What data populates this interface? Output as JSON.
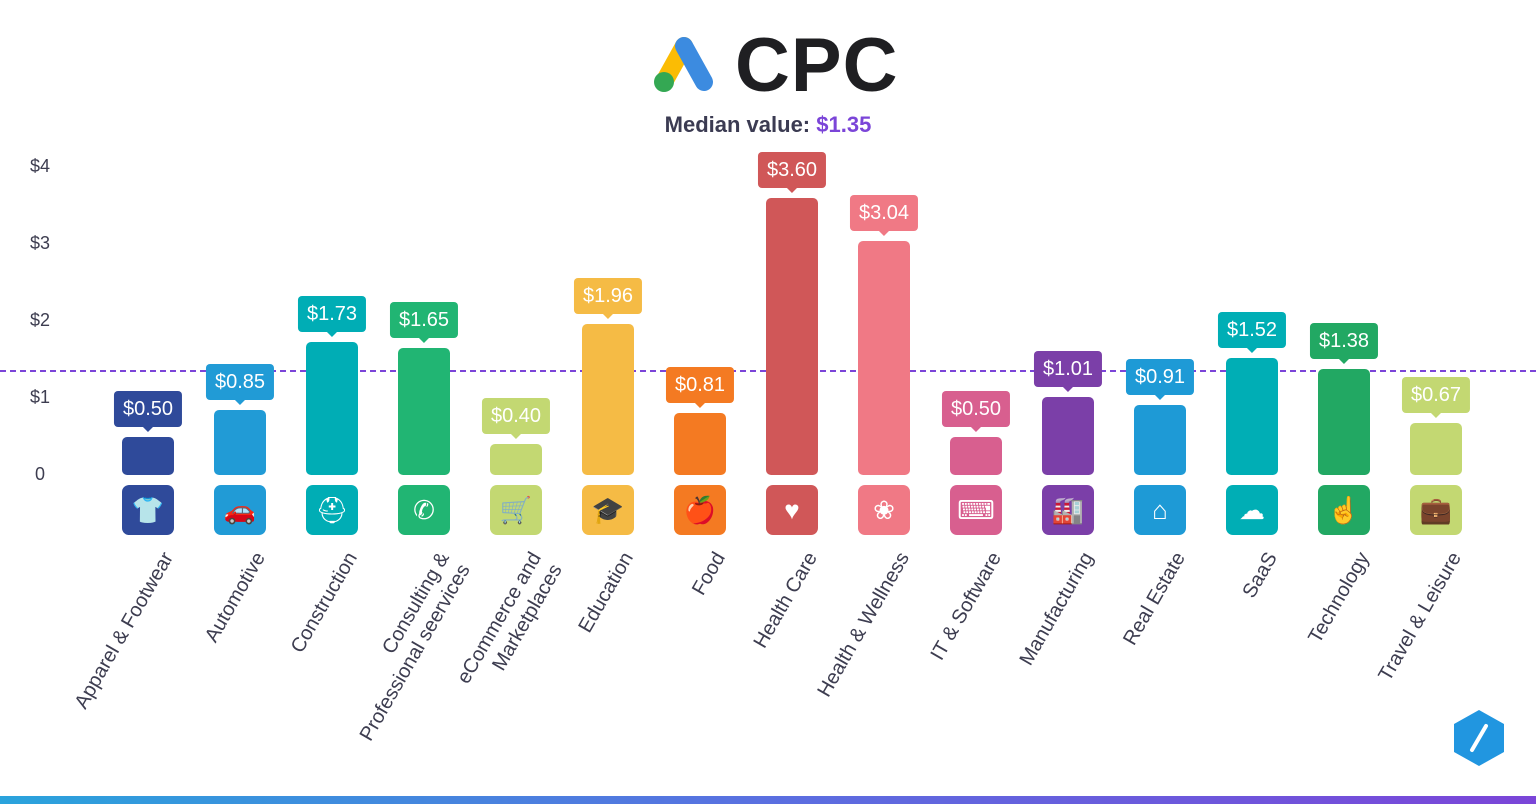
{
  "header": {
    "title": "CPC",
    "subtitle_label": "Median value:",
    "subtitle_value": "$1.35"
  },
  "colors": {
    "median_line": "#7b45d8",
    "logo_blue": "#3c8be0",
    "logo_yellow": "#fbbc04",
    "logo_green": "#34a853"
  },
  "chart_data": {
    "type": "bar",
    "title": "CPC",
    "xlabel": "",
    "ylabel": "",
    "ylim": [
      0,
      4
    ],
    "yticks": [
      {
        "value": 0,
        "label": "0"
      },
      {
        "value": 1,
        "label": "$1"
      },
      {
        "value": 2,
        "label": "$2"
      },
      {
        "value": 3,
        "label": "$3"
      },
      {
        "value": 4,
        "label": "$4"
      }
    ],
    "grid": false,
    "median": 1.35,
    "categories": [
      "Apparel & Footwear",
      "Automotive",
      "Construction",
      "Consulting &\nProfessional seervices",
      "eCommerce and\nMarketplaces",
      "Education",
      "Food",
      "Health Care",
      "Health & Wellness",
      "IT & Software",
      "Manufacturing",
      "Real Estate",
      "SaaS",
      "Technology",
      "Travel & Leisure"
    ],
    "values": [
      0.5,
      0.85,
      1.73,
      1.65,
      0.4,
      1.96,
      0.81,
      3.6,
      3.04,
      0.5,
      1.01,
      0.91,
      1.52,
      1.38,
      0.67
    ],
    "value_labels": [
      "$0.50",
      "$0.85",
      "$1.73",
      "$1.65",
      "$0.40",
      "$1.96",
      "$0.81",
      "$3.60",
      "$3.04",
      "$0.50",
      "$1.01",
      "$0.91",
      "$1.52",
      "$1.38",
      "$0.67"
    ],
    "bar_colors": [
      "#2f4a9a",
      "#219bd6",
      "#00adb5",
      "#21b573",
      "#c3d872",
      "#f5bb45",
      "#f47a22",
      "#d05758",
      "#f07985",
      "#d85f8f",
      "#7b3fa8",
      "#1e9ad6",
      "#00aeb5",
      "#22a863",
      "#c3d872"
    ],
    "icons": [
      "tshirt-icon",
      "car-icon",
      "hard-hat-icon",
      "phone-chat-icon",
      "shopping-cart-icon",
      "graduation-cap-icon",
      "apple-icon",
      "heart-pulse-icon",
      "lotus-icon",
      "monitor-code-icon",
      "factory-icon",
      "house-key-icon",
      "cloud-icon",
      "touch-network-icon",
      "suitcase-icon"
    ]
  }
}
